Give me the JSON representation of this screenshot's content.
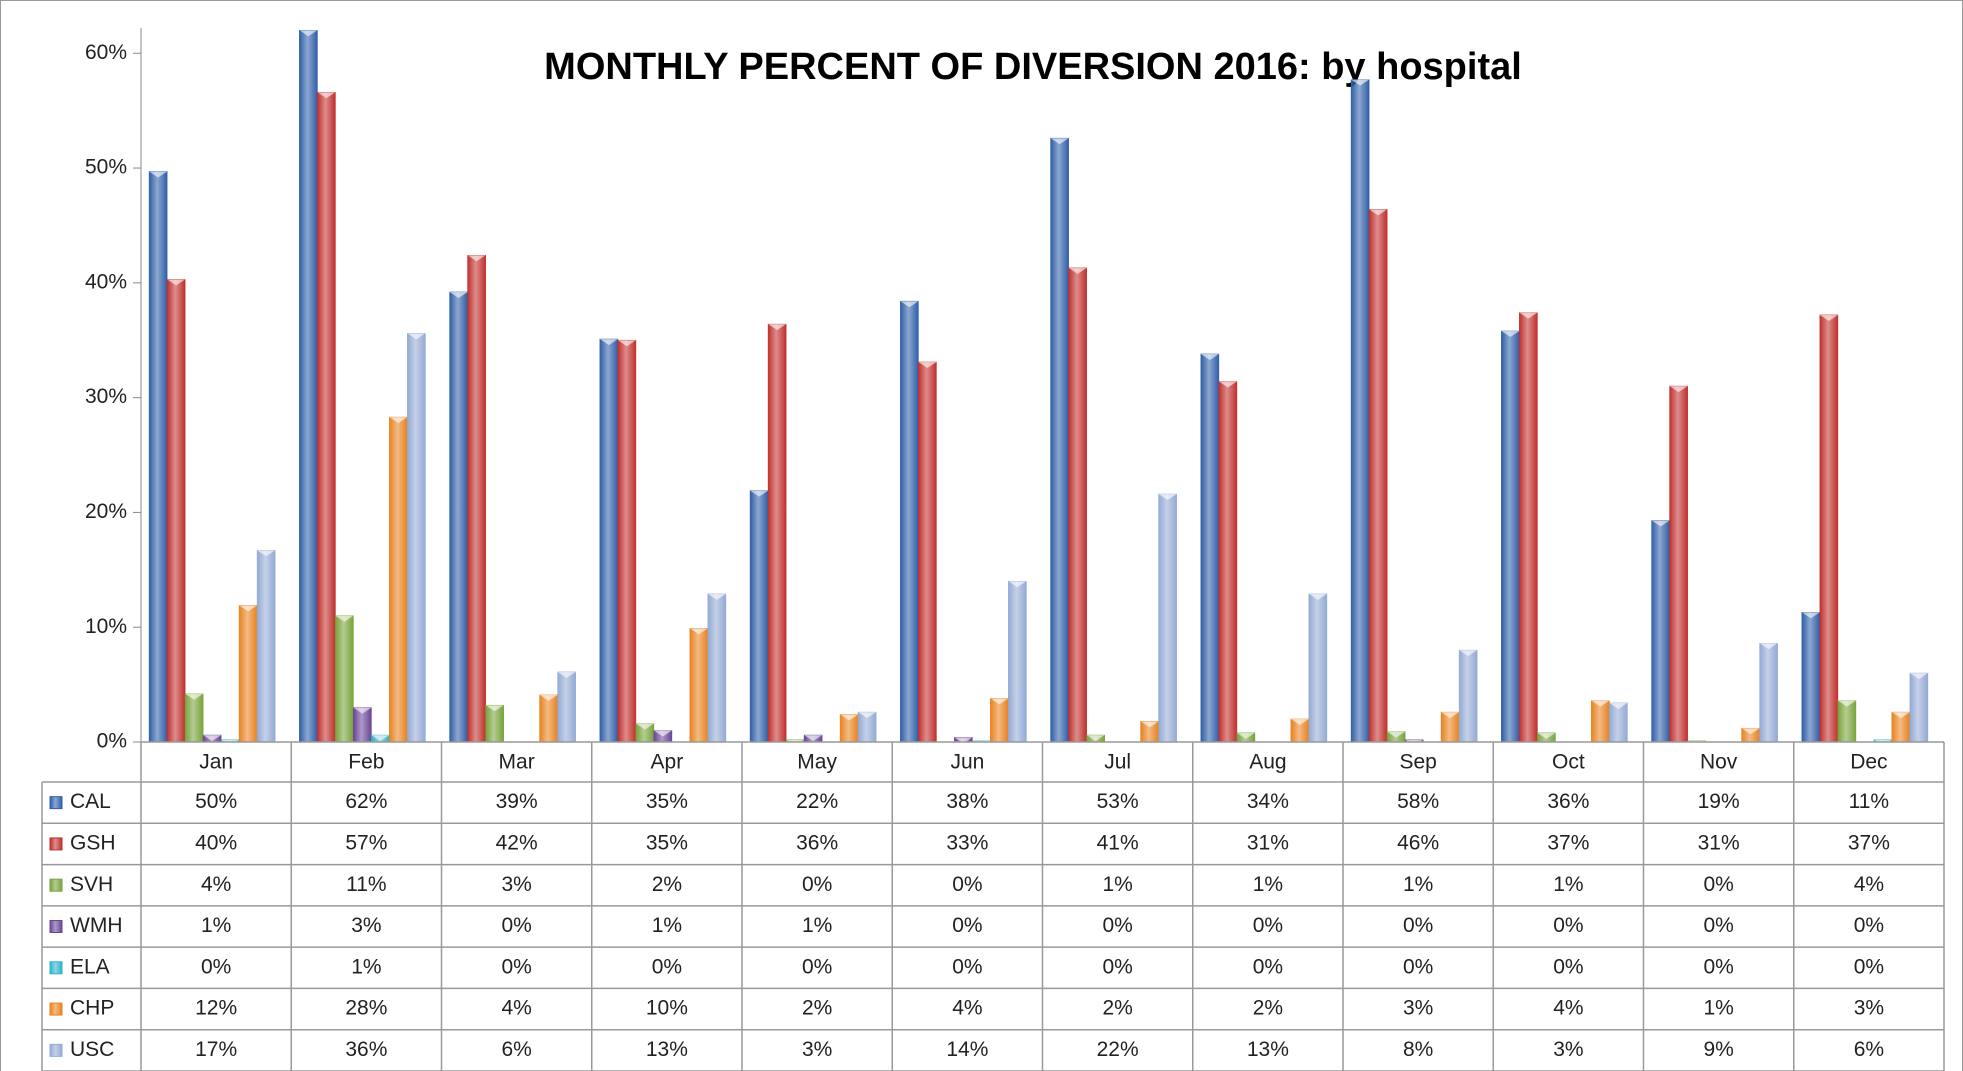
{
  "chart_data": {
    "type": "bar",
    "title": "MONTHLY PERCENT OF DIVERSION 2016: by hospital",
    "categories": [
      "Jan",
      "Feb",
      "Mar",
      "Apr",
      "May",
      "Jun",
      "Jul",
      "Aug",
      "Sep",
      "Oct",
      "Nov",
      "Dec"
    ],
    "ylim": [
      0,
      62.2
    ],
    "yticks": [
      {
        "value": 0,
        "label": "0%"
      },
      {
        "value": 10,
        "label": "10%"
      },
      {
        "value": 20,
        "label": "20%"
      },
      {
        "value": 30,
        "label": "30%"
      },
      {
        "value": 40,
        "label": "40%"
      },
      {
        "value": 50,
        "label": "50%"
      },
      {
        "value": 60,
        "label": "60%"
      }
    ],
    "data_table": true,
    "series": [
      {
        "name": "CAL",
        "color": "#2f5fa8",
        "values": [
          49.7,
          62,
          39.2,
          35.1,
          21.9,
          38.4,
          52.6,
          33.8,
          57.7,
          35.8,
          19.3,
          11.3
        ],
        "value_labels": [
          "50%",
          "62%",
          "39%",
          "35%",
          "22%",
          "38%",
          "53%",
          "34%",
          "58%",
          "36%",
          "19%",
          "11%"
        ]
      },
      {
        "name": "GSH",
        "color": "#c0302d",
        "values": [
          40.3,
          56.6,
          42.4,
          35.0,
          36.4,
          33.1,
          41.3,
          31.4,
          46.4,
          37.4,
          31.0,
          37.2
        ],
        "value_labels": [
          "40%",
          "57%",
          "42%",
          "35%",
          "36%",
          "33%",
          "41%",
          "31%",
          "46%",
          "37%",
          "31%",
          "37%"
        ]
      },
      {
        "name": "SVH",
        "color": "#77a33a",
        "values": [
          4.2,
          11.0,
          3.2,
          1.6,
          0.2,
          0,
          0.6,
          0.8,
          0.9,
          0.8,
          0.1,
          3.6
        ],
        "value_labels": [
          "4%",
          "11%",
          "3%",
          "2%",
          "0%",
          "0%",
          "1%",
          "1%",
          "1%",
          "1%",
          "0%",
          "4%"
        ]
      },
      {
        "name": "WMH",
        "color": "#6b4597",
        "values": [
          0.6,
          3.0,
          0,
          1.0,
          0.6,
          0.4,
          0,
          0,
          0.2,
          0,
          0,
          0
        ],
        "value_labels": [
          "1%",
          "3%",
          "0%",
          "1%",
          "1%",
          "0%",
          "0%",
          "0%",
          "0%",
          "0%",
          "0%",
          "0%"
        ]
      },
      {
        "name": "ELA",
        "color": "#2fb3c9",
        "values": [
          0.2,
          0.6,
          0,
          0,
          0,
          0.1,
          0,
          0,
          0,
          0,
          0,
          0.2
        ],
        "value_labels": [
          "0%",
          "1%",
          "0%",
          "0%",
          "0%",
          "0%",
          "0%",
          "0%",
          "0%",
          "0%",
          "0%",
          "0%"
        ]
      },
      {
        "name": "CHP",
        "color": "#e8821f",
        "values": [
          11.9,
          28.3,
          4.1,
          9.9,
          2.4,
          3.8,
          1.8,
          2.0,
          2.6,
          3.6,
          1.2,
          2.6
        ],
        "value_labels": [
          "12%",
          "28%",
          "4%",
          "10%",
          "2%",
          "4%",
          "2%",
          "2%",
          "3%",
          "4%",
          "1%",
          "3%"
        ]
      },
      {
        "name": "USC",
        "color": "#93aad4",
        "values": [
          16.7,
          35.6,
          6.1,
          12.9,
          2.6,
          14.0,
          21.6,
          12.9,
          8.0,
          3.4,
          8.6,
          6.0
        ],
        "value_labels": [
          "17%",
          "36%",
          "6%",
          "13%",
          "3%",
          "14%",
          "22%",
          "13%",
          "8%",
          "3%",
          "9%",
          "6%"
        ]
      }
    ]
  }
}
